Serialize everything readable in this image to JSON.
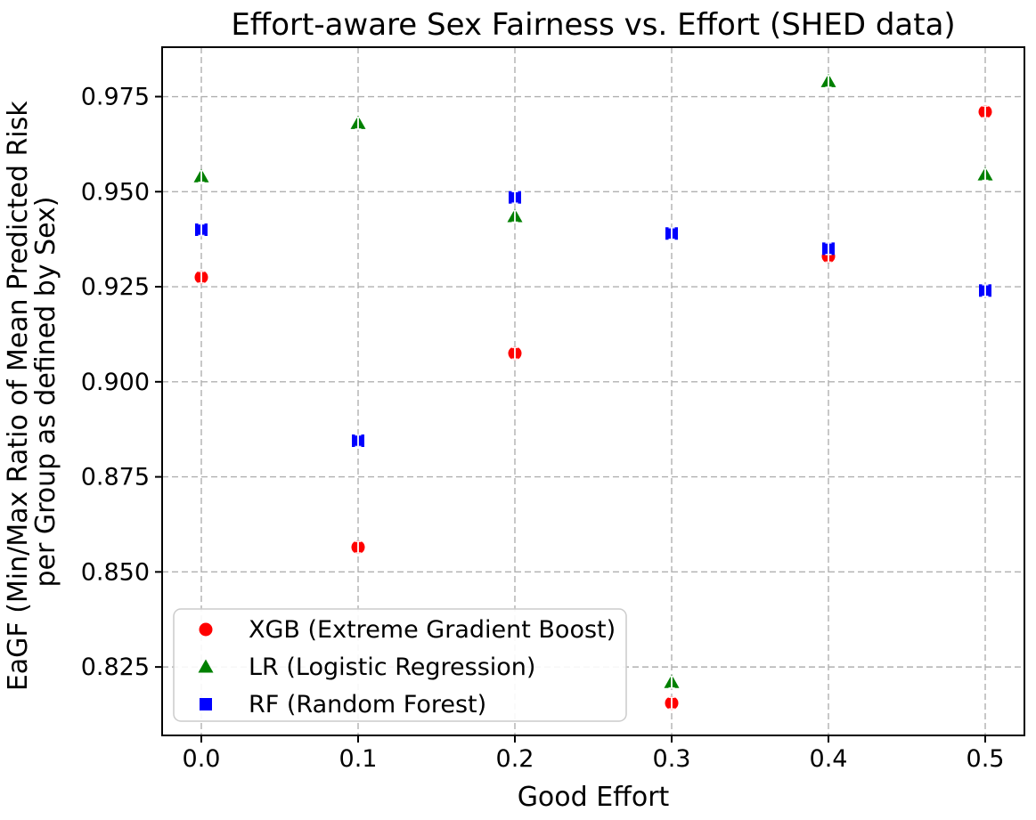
{
  "figure": {
    "title": "Effort-aware Sex Fairness vs. Effort (SHED data)",
    "xlabel": "Good Effort",
    "ylabel_line1": "EaGF (Min/Max Ratio of Mean Predicted Risk",
    "ylabel_line2": "per Group as defined by Sex)",
    "background_color": "#ffffff",
    "spine_color": "#000000",
    "grid_color": "#b0b0b0",
    "errorbar_color": "#ffffff",
    "legend_border_color": "#cccccc"
  },
  "chart_data": {
    "type": "scatter",
    "title": "Effort-aware Sex Fairness vs. Effort (SHED data)",
    "xlabel": "Good Effort",
    "ylabel": "EaGF (Min/Max Ratio of Mean Predicted Risk\nper Group as defined by Sex)",
    "x": [
      0.0,
      0.1,
      0.2,
      0.3,
      0.4,
      0.5
    ],
    "series": [
      {
        "name": "XGB (Extreme Gradient Boost)",
        "marker": "circle",
        "color": "#ff0000",
        "values": [
          0.9275,
          0.8565,
          0.9075,
          0.8155,
          0.933,
          0.971
        ]
      },
      {
        "name": "LR (Logistic Regression)",
        "marker": "triangle",
        "color": "#008000",
        "values": [
          0.954,
          0.968,
          0.9435,
          0.821,
          0.979,
          0.9545
        ]
      },
      {
        "name": "RF (Random Forest)",
        "marker": "square",
        "color": "#0000ff",
        "values": [
          0.94,
          0.8845,
          0.9485,
          0.939,
          0.935,
          0.924
        ]
      }
    ],
    "xticks": [
      0.0,
      0.1,
      0.2,
      0.3,
      0.4,
      0.5
    ],
    "yticks": [
      0.825,
      0.85,
      0.875,
      0.9,
      0.925,
      0.95,
      0.975
    ],
    "xlim": [
      -0.025,
      0.525
    ],
    "ylim": [
      0.807,
      0.988
    ],
    "grid": true,
    "grid_linestyle": "dashed",
    "legend_position": "lower left",
    "errorbars": true
  }
}
